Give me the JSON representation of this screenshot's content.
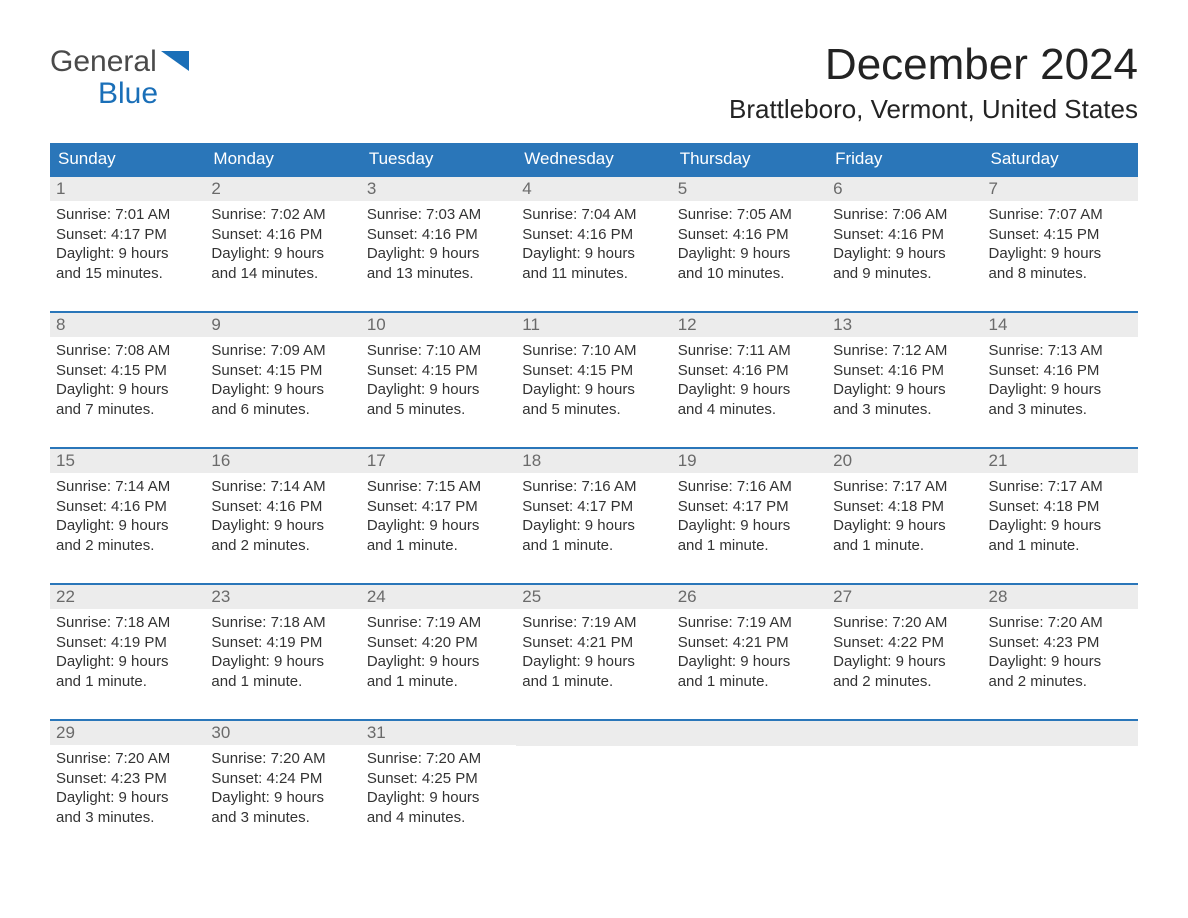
{
  "logo": {
    "word1": "General",
    "word2": "Blue"
  },
  "title": "December 2024",
  "location": "Brattleboro, Vermont, United States",
  "colors": {
    "header_bg": "#2a76b9",
    "header_text": "#ffffff",
    "daynum_bg": "#ececec",
    "daynum_text": "#6a6a6a",
    "body_text": "#333333",
    "rule": "#2a76b9",
    "logo_gray": "#4a4a4a",
    "logo_blue": "#1a6fb8"
  },
  "day_names": [
    "Sunday",
    "Monday",
    "Tuesday",
    "Wednesday",
    "Thursday",
    "Friday",
    "Saturday"
  ],
  "weeks": [
    [
      {
        "n": "1",
        "sunrise": "Sunrise: 7:01 AM",
        "sunset": "Sunset: 4:17 PM",
        "dl1": "Daylight: 9 hours",
        "dl2": "and 15 minutes."
      },
      {
        "n": "2",
        "sunrise": "Sunrise: 7:02 AM",
        "sunset": "Sunset: 4:16 PM",
        "dl1": "Daylight: 9 hours",
        "dl2": "and 14 minutes."
      },
      {
        "n": "3",
        "sunrise": "Sunrise: 7:03 AM",
        "sunset": "Sunset: 4:16 PM",
        "dl1": "Daylight: 9 hours",
        "dl2": "and 13 minutes."
      },
      {
        "n": "4",
        "sunrise": "Sunrise: 7:04 AM",
        "sunset": "Sunset: 4:16 PM",
        "dl1": "Daylight: 9 hours",
        "dl2": "and 11 minutes."
      },
      {
        "n": "5",
        "sunrise": "Sunrise: 7:05 AM",
        "sunset": "Sunset: 4:16 PM",
        "dl1": "Daylight: 9 hours",
        "dl2": "and 10 minutes."
      },
      {
        "n": "6",
        "sunrise": "Sunrise: 7:06 AM",
        "sunset": "Sunset: 4:16 PM",
        "dl1": "Daylight: 9 hours",
        "dl2": "and 9 minutes."
      },
      {
        "n": "7",
        "sunrise": "Sunrise: 7:07 AM",
        "sunset": "Sunset: 4:15 PM",
        "dl1": "Daylight: 9 hours",
        "dl2": "and 8 minutes."
      }
    ],
    [
      {
        "n": "8",
        "sunrise": "Sunrise: 7:08 AM",
        "sunset": "Sunset: 4:15 PM",
        "dl1": "Daylight: 9 hours",
        "dl2": "and 7 minutes."
      },
      {
        "n": "9",
        "sunrise": "Sunrise: 7:09 AM",
        "sunset": "Sunset: 4:15 PM",
        "dl1": "Daylight: 9 hours",
        "dl2": "and 6 minutes."
      },
      {
        "n": "10",
        "sunrise": "Sunrise: 7:10 AM",
        "sunset": "Sunset: 4:15 PM",
        "dl1": "Daylight: 9 hours",
        "dl2": "and 5 minutes."
      },
      {
        "n": "11",
        "sunrise": "Sunrise: 7:10 AM",
        "sunset": "Sunset: 4:15 PM",
        "dl1": "Daylight: 9 hours",
        "dl2": "and 5 minutes."
      },
      {
        "n": "12",
        "sunrise": "Sunrise: 7:11 AM",
        "sunset": "Sunset: 4:16 PM",
        "dl1": "Daylight: 9 hours",
        "dl2": "and 4 minutes."
      },
      {
        "n": "13",
        "sunrise": "Sunrise: 7:12 AM",
        "sunset": "Sunset: 4:16 PM",
        "dl1": "Daylight: 9 hours",
        "dl2": "and 3 minutes."
      },
      {
        "n": "14",
        "sunrise": "Sunrise: 7:13 AM",
        "sunset": "Sunset: 4:16 PM",
        "dl1": "Daylight: 9 hours",
        "dl2": "and 3 minutes."
      }
    ],
    [
      {
        "n": "15",
        "sunrise": "Sunrise: 7:14 AM",
        "sunset": "Sunset: 4:16 PM",
        "dl1": "Daylight: 9 hours",
        "dl2": "and 2 minutes."
      },
      {
        "n": "16",
        "sunrise": "Sunrise: 7:14 AM",
        "sunset": "Sunset: 4:16 PM",
        "dl1": "Daylight: 9 hours",
        "dl2": "and 2 minutes."
      },
      {
        "n": "17",
        "sunrise": "Sunrise: 7:15 AM",
        "sunset": "Sunset: 4:17 PM",
        "dl1": "Daylight: 9 hours",
        "dl2": "and 1 minute."
      },
      {
        "n": "18",
        "sunrise": "Sunrise: 7:16 AM",
        "sunset": "Sunset: 4:17 PM",
        "dl1": "Daylight: 9 hours",
        "dl2": "and 1 minute."
      },
      {
        "n": "19",
        "sunrise": "Sunrise: 7:16 AM",
        "sunset": "Sunset: 4:17 PM",
        "dl1": "Daylight: 9 hours",
        "dl2": "and 1 minute."
      },
      {
        "n": "20",
        "sunrise": "Sunrise: 7:17 AM",
        "sunset": "Sunset: 4:18 PM",
        "dl1": "Daylight: 9 hours",
        "dl2": "and 1 minute."
      },
      {
        "n": "21",
        "sunrise": "Sunrise: 7:17 AM",
        "sunset": "Sunset: 4:18 PM",
        "dl1": "Daylight: 9 hours",
        "dl2": "and 1 minute."
      }
    ],
    [
      {
        "n": "22",
        "sunrise": "Sunrise: 7:18 AM",
        "sunset": "Sunset: 4:19 PM",
        "dl1": "Daylight: 9 hours",
        "dl2": "and 1 minute."
      },
      {
        "n": "23",
        "sunrise": "Sunrise: 7:18 AM",
        "sunset": "Sunset: 4:19 PM",
        "dl1": "Daylight: 9 hours",
        "dl2": "and 1 minute."
      },
      {
        "n": "24",
        "sunrise": "Sunrise: 7:19 AM",
        "sunset": "Sunset: 4:20 PM",
        "dl1": "Daylight: 9 hours",
        "dl2": "and 1 minute."
      },
      {
        "n": "25",
        "sunrise": "Sunrise: 7:19 AM",
        "sunset": "Sunset: 4:21 PM",
        "dl1": "Daylight: 9 hours",
        "dl2": "and 1 minute."
      },
      {
        "n": "26",
        "sunrise": "Sunrise: 7:19 AM",
        "sunset": "Sunset: 4:21 PM",
        "dl1": "Daylight: 9 hours",
        "dl2": "and 1 minute."
      },
      {
        "n": "27",
        "sunrise": "Sunrise: 7:20 AM",
        "sunset": "Sunset: 4:22 PM",
        "dl1": "Daylight: 9 hours",
        "dl2": "and 2 minutes."
      },
      {
        "n": "28",
        "sunrise": "Sunrise: 7:20 AM",
        "sunset": "Sunset: 4:23 PM",
        "dl1": "Daylight: 9 hours",
        "dl2": "and 2 minutes."
      }
    ],
    [
      {
        "n": "29",
        "sunrise": "Sunrise: 7:20 AM",
        "sunset": "Sunset: 4:23 PM",
        "dl1": "Daylight: 9 hours",
        "dl2": "and 3 minutes."
      },
      {
        "n": "30",
        "sunrise": "Sunrise: 7:20 AM",
        "sunset": "Sunset: 4:24 PM",
        "dl1": "Daylight: 9 hours",
        "dl2": "and 3 minutes."
      },
      {
        "n": "31",
        "sunrise": "Sunrise: 7:20 AM",
        "sunset": "Sunset: 4:25 PM",
        "dl1": "Daylight: 9 hours",
        "dl2": "and 4 minutes."
      },
      {
        "empty": true
      },
      {
        "empty": true
      },
      {
        "empty": true
      },
      {
        "empty": true
      }
    ]
  ]
}
